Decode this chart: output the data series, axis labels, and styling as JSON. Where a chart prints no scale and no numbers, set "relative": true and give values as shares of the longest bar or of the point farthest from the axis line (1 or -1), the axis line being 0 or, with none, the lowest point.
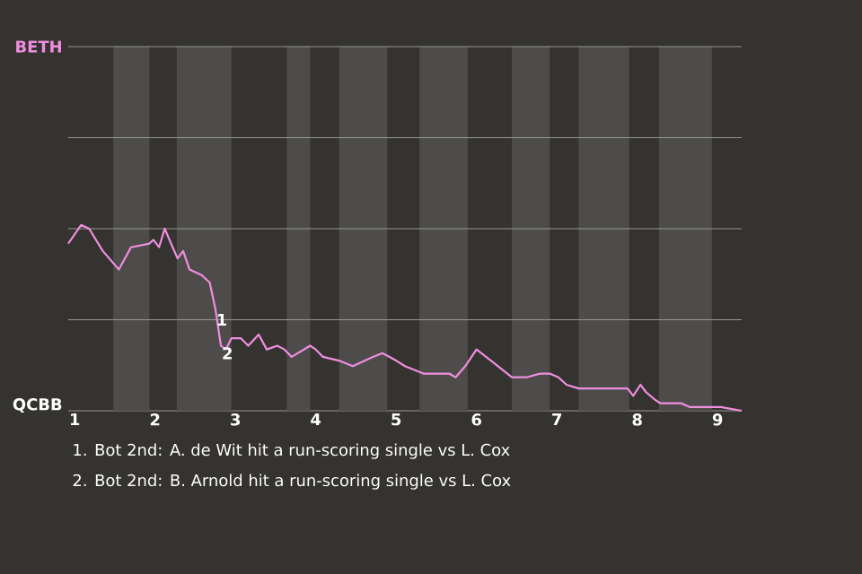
{
  "chart_data": {
    "type": "line",
    "relative": true,
    "x": [
      0.92,
      1.08,
      1.18,
      1.35,
      1.55,
      1.7,
      1.93,
      1.98,
      2.05,
      2.12,
      2.22,
      2.28,
      2.35,
      2.43,
      2.58,
      2.68,
      2.75,
      2.82,
      2.88,
      2.95,
      3.07,
      3.16,
      3.29,
      3.39,
      3.52,
      3.61,
      3.7,
      3.93,
      4.0,
      4.09,
      4.29,
      4.46,
      4.71,
      4.83,
      5.0,
      5.11,
      5.34,
      5.51,
      5.66,
      5.74,
      5.86,
      6.0,
      6.18,
      6.44,
      6.62,
      6.79,
      6.91,
      7.02,
      7.12,
      7.27,
      7.37,
      7.51,
      7.61,
      7.88,
      7.95,
      8.04,
      8.11,
      8.22,
      8.29,
      8.44,
      8.55,
      8.65,
      8.95,
      9.04,
      9.3
    ],
    "series": [
      {
        "color": "#f08ee0",
        "values": [
          0.9,
          1,
          0.98,
          0.86,
          0.76,
          0.88,
          0.9,
          0.92,
          0.88,
          0.98,
          0.88,
          0.82,
          0.86,
          0.76,
          0.73,
          0.69,
          0.55,
          0.35,
          0.33,
          0.39,
          0.39,
          0.35,
          0.41,
          0.33,
          0.35,
          0.33,
          0.29,
          0.35,
          0.33,
          0.29,
          0.27,
          0.24,
          0.29,
          0.31,
          0.27,
          0.24,
          0.2,
          0.2,
          0.2,
          0.18,
          0.24,
          0.33,
          0.27,
          0.18,
          0.18,
          0.2,
          0.2,
          0.18,
          0.14,
          0.12,
          0.12,
          0.12,
          0.12,
          0.12,
          0.08,
          0.14,
          0.1,
          0.06,
          0.04,
          0.04,
          0.04,
          0.02,
          0.02,
          0.02,
          0
        ]
      }
    ],
    "xlim": [
      0.92,
      9.3
    ],
    "xticks": [
      1,
      2,
      3,
      4,
      5,
      6,
      7,
      8,
      9
    ],
    "ref_lines": [
      {
        "axis": "y",
        "value": 0.49,
        "color": "#969696"
      },
      {
        "axis": "y",
        "value": 0.98,
        "color": "#969696"
      },
      {
        "axis": "y",
        "value": 1.47,
        "color": "#969696"
      },
      {
        "axis": "y",
        "value": 1.96,
        "color": "#969696"
      }
    ],
    "bands": [
      {
        "axis": "x",
        "from": 1.48,
        "to": 1.93,
        "color": "#4d4c4a"
      },
      {
        "axis": "x",
        "from": 2.27,
        "to": 2.95,
        "color": "#4d4c4a"
      },
      {
        "axis": "x",
        "from": 3.64,
        "to": 3.93,
        "color": "#4d4c4a"
      },
      {
        "axis": "x",
        "from": 4.29,
        "to": 4.89,
        "color": "#4d4c4a"
      },
      {
        "axis": "x",
        "from": 5.29,
        "to": 5.89,
        "color": "#4d4c4a"
      },
      {
        "axis": "x",
        "from": 6.44,
        "to": 6.91,
        "color": "#4d4c4a"
      },
      {
        "axis": "x",
        "from": 7.27,
        "to": 7.9,
        "color": "#4d4c4a"
      },
      {
        "axis": "x",
        "from": 8.27,
        "to": 8.93,
        "color": "#4d4c4a"
      }
    ],
    "annotations": [
      "BETH",
      "QCBB",
      {
        "text": "1",
        "x": 2.83,
        "y": 0.49
      },
      {
        "text": "2",
        "x": 2.9,
        "y": 0.31
      },
      "1. Bot 2nd: A. de Wit hit a run-scoring single vs L. Cox",
      "2. Bot 2nd: B. Arnold hit a run-scoring single vs L. Cox"
    ]
  }
}
